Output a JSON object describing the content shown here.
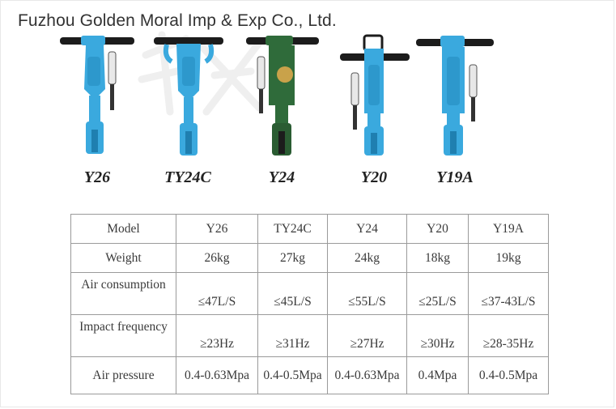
{
  "company": "Fuzhou Golden Moral Imp & Exp Co., Ltd.",
  "models": [
    "Y26",
    "TY24C",
    "Y24",
    "Y20",
    "Y19A"
  ],
  "colors": {
    "drill_blue": "#3aa9de",
    "drill_blue_dark": "#1f7fb0",
    "drill_green": "#2f6b3a",
    "handle_black": "#1c1c1c",
    "table_border": "#9a9a9a",
    "text": "#333333"
  },
  "table": {
    "rows": [
      {
        "label": "Model",
        "values": [
          "Y26",
          "TY24C",
          "Y24",
          "Y20",
          "Y19A"
        ]
      },
      {
        "label": "Weight",
        "values": [
          "26kg",
          "27kg",
          "24kg",
          "18kg",
          "19kg"
        ]
      },
      {
        "label": "Air consumption",
        "values": [
          "≤47L/S",
          "≤45L/S",
          "≤55L/S",
          "≤25L/S",
          "≤37-43L/S"
        ]
      },
      {
        "label": "Impact frequency",
        "values": [
          "≥23Hz",
          "≥31Hz",
          "≥27Hz",
          "≥30Hz",
          "≥28-35Hz"
        ]
      },
      {
        "label": "Air pressure",
        "values": [
          "0.4-0.63Mpa",
          "0.4-0.5Mpa",
          "0.4-0.63Mpa",
          "0.4Mpa",
          "0.4-0.5Mpa"
        ]
      }
    ]
  }
}
